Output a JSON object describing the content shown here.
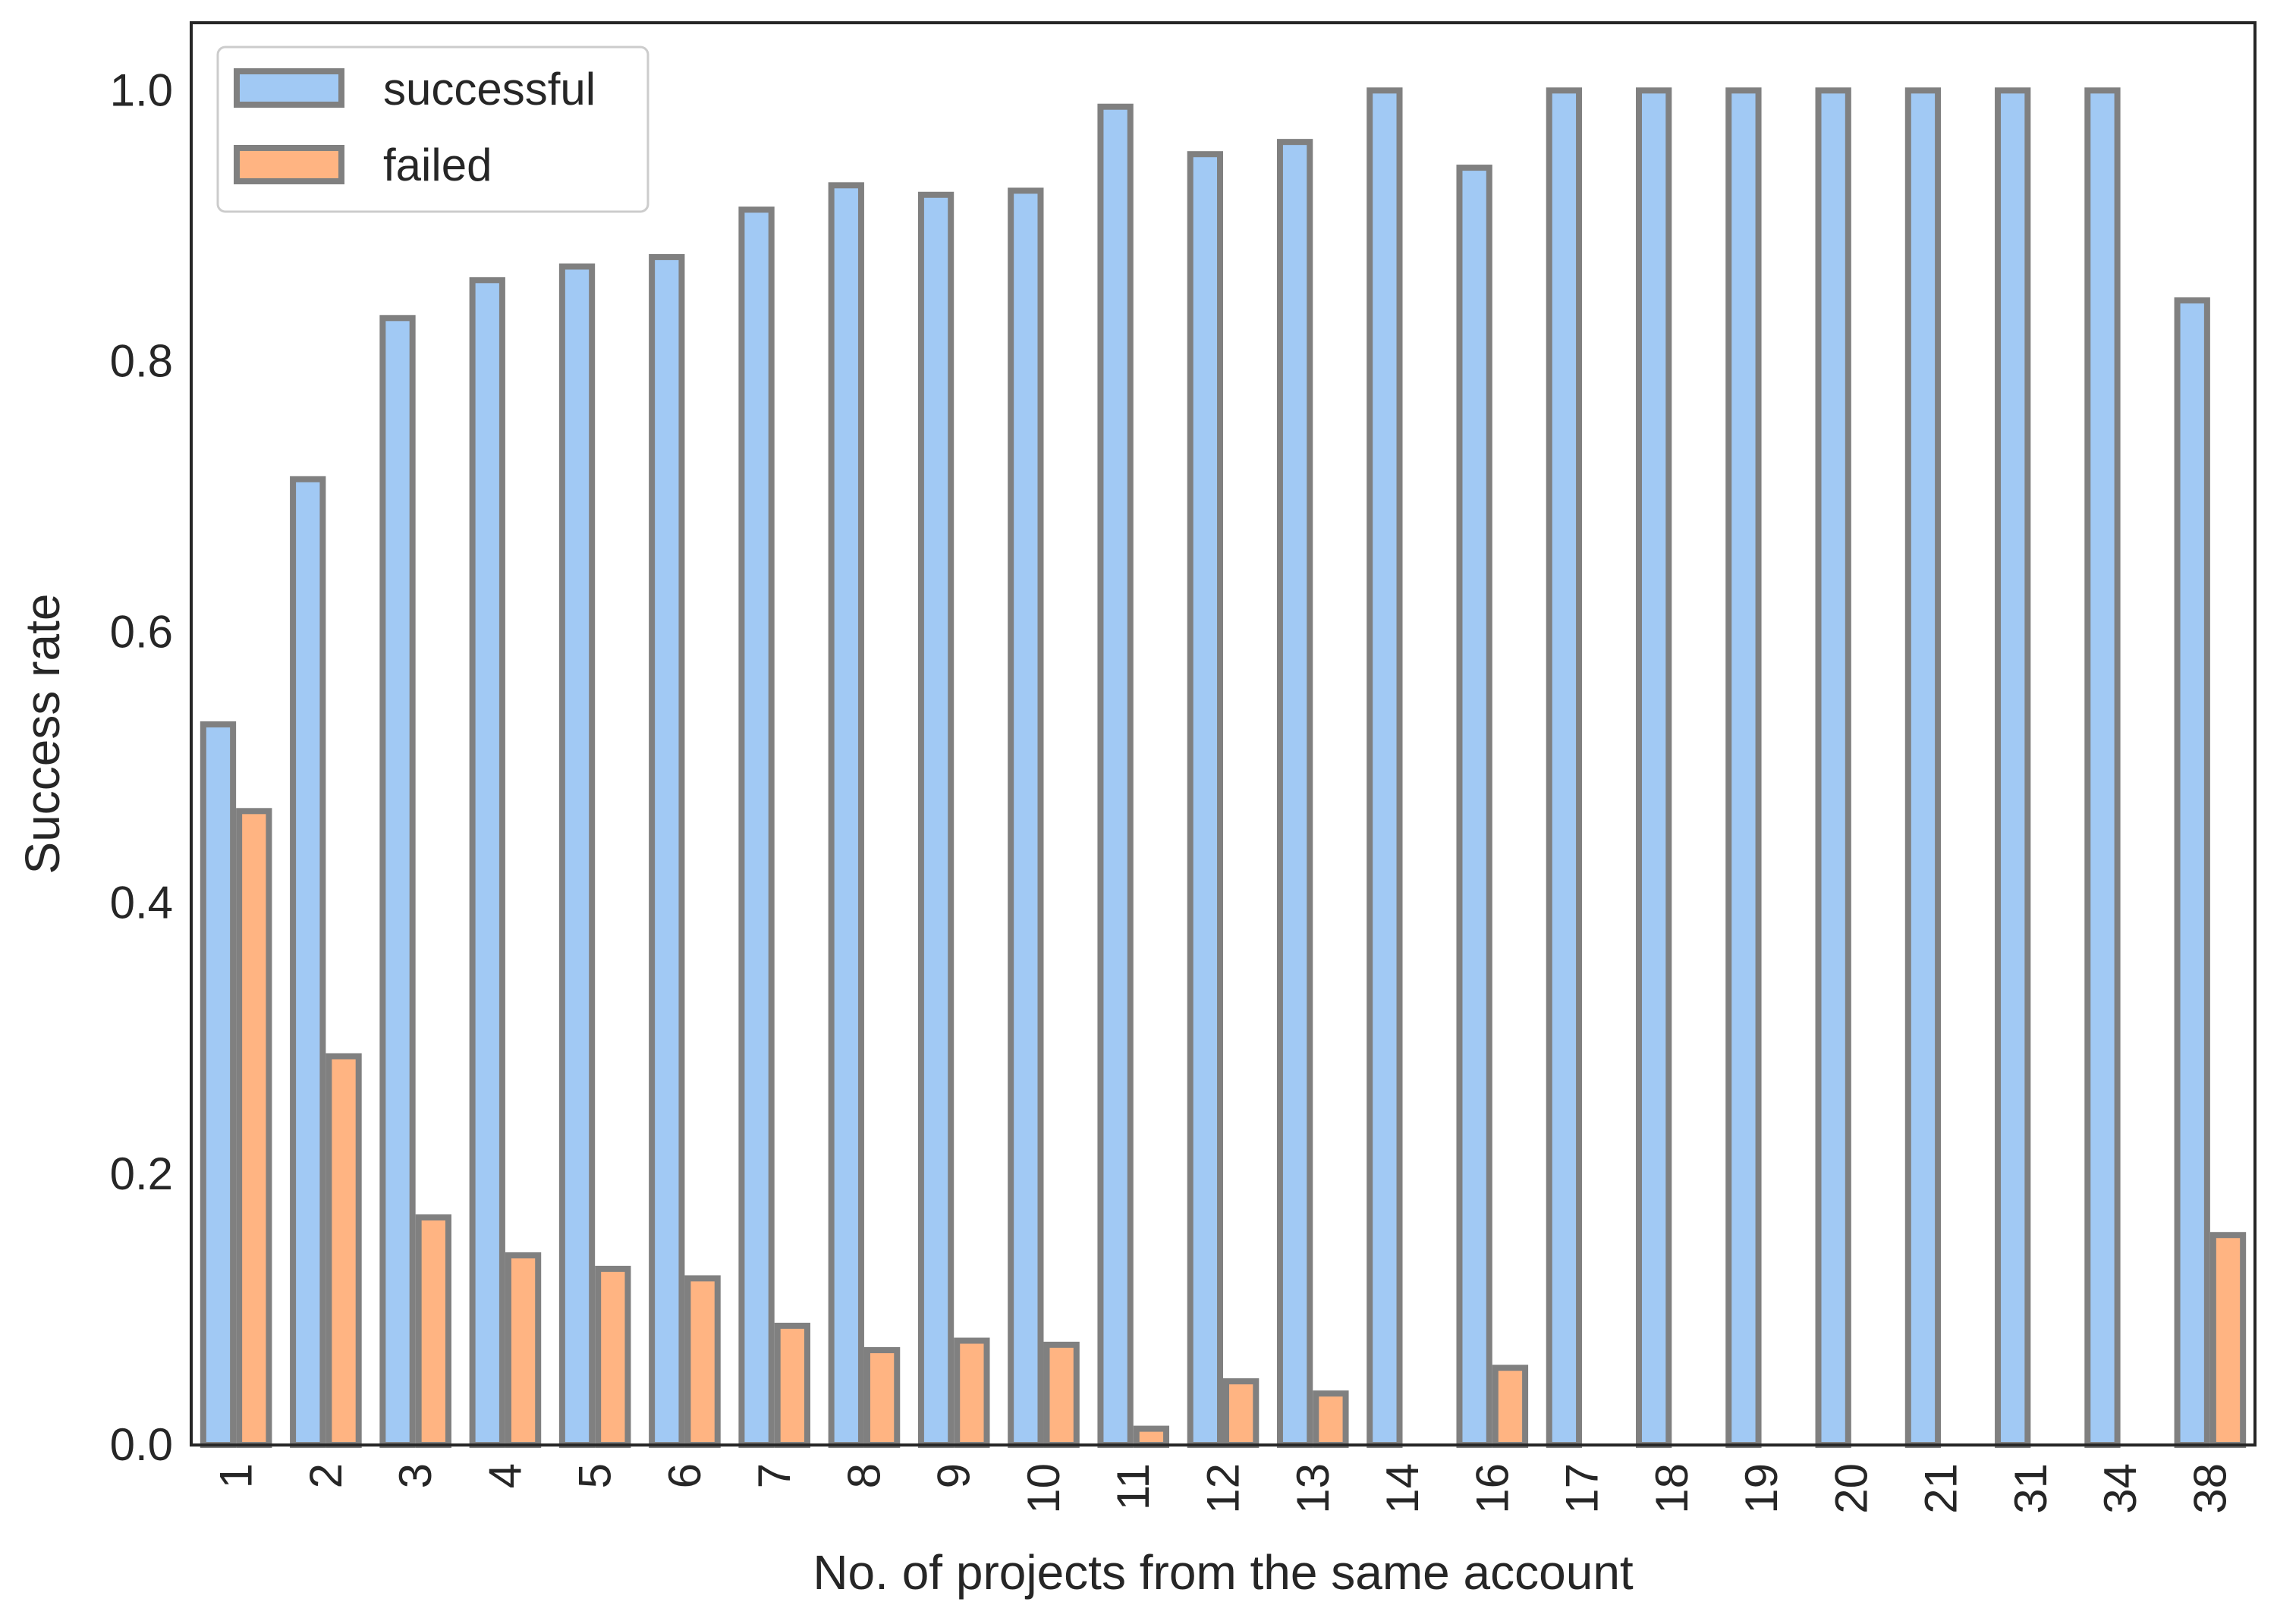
{
  "chart_data": {
    "type": "bar",
    "title": "",
    "xlabel": "No. of projects from the same account",
    "ylabel": "Success rate",
    "ylim": [
      0,
      1.05
    ],
    "yticks": [
      "0.0",
      "0.2",
      "0.4",
      "0.6",
      "0.8",
      "1.0"
    ],
    "grid": false,
    "legend": {
      "position": "top-left",
      "entries": [
        "successful",
        "failed"
      ]
    },
    "categories": [
      "1",
      "2",
      "3",
      "4",
      "5",
      "6",
      "7",
      "8",
      "9",
      "10",
      "11",
      "12",
      "13",
      "14",
      "16",
      "17",
      "18",
      "19",
      "20",
      "21",
      "31",
      "34",
      "38"
    ],
    "series": [
      {
        "name": "successful",
        "color": "#a1c9f4",
        "values": [
          0.532,
          0.713,
          0.832,
          0.86,
          0.87,
          0.877,
          0.912,
          0.93,
          0.923,
          0.926,
          0.988,
          0.953,
          0.962,
          1.0,
          0.943,
          1.0,
          1.0,
          1.0,
          1.0,
          1.0,
          1.0,
          1.0,
          0.845
        ]
      },
      {
        "name": "failed",
        "color": "#ffb482",
        "values": [
          0.468,
          0.287,
          0.168,
          0.14,
          0.13,
          0.123,
          0.088,
          0.07,
          0.077,
          0.074,
          0.012,
          0.047,
          0.038,
          0.0,
          0.057,
          0.0,
          0.0,
          0.0,
          0.0,
          0.0,
          0.0,
          0.0,
          0.155
        ]
      }
    ],
    "bar_edge_color": "#808080"
  }
}
